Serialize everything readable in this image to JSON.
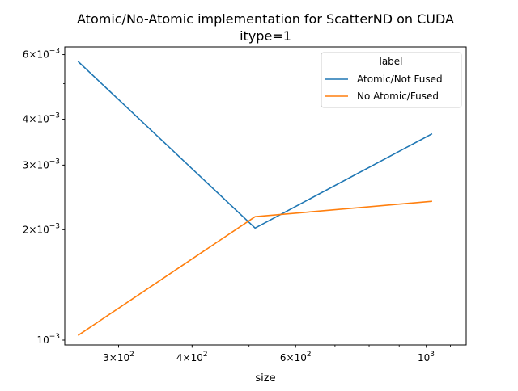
{
  "chart_data": {
    "type": "line",
    "title": "Atomic/No-Atomic implementation for ScatterND on CUDA",
    "subtitle": "itype=1",
    "xlabel": "size",
    "ylabel": "",
    "xscale": "log",
    "yscale": "log",
    "xlim": [
      243,
      1170
    ],
    "ylim": [
      0.00097,
      0.0063
    ],
    "x": [
      256,
      512,
      1024
    ],
    "x_ticks": [
      {
        "value": 300,
        "base": "3×10",
        "exp": "2"
      },
      {
        "value": 400,
        "base": "4×10",
        "exp": "2"
      },
      {
        "value": 600,
        "base": "6×10",
        "exp": "2"
      },
      {
        "value": 1000,
        "base": "10",
        "exp": "3"
      }
    ],
    "y_ticks": [
      {
        "value": 0.001,
        "base": "10",
        "exp": "−3"
      },
      {
        "value": 0.002,
        "base": "2×10",
        "exp": "−3"
      },
      {
        "value": 0.003,
        "base": "3×10",
        "exp": "−3"
      },
      {
        "value": 0.004,
        "base": "4×10",
        "exp": "−3"
      },
      {
        "value": 0.006,
        "base": "6×10",
        "exp": "−3"
      }
    ],
    "series": [
      {
        "name": "Atomic/Not Fused",
        "color": "#1f77b4",
        "values": [
          0.00575,
          0.00202,
          0.00365
        ]
      },
      {
        "name": "No Atomic/Fused",
        "color": "#ff7f0e",
        "values": [
          0.00103,
          0.00217,
          0.00239
        ]
      }
    ],
    "legend": {
      "title": "label",
      "position": "top-right"
    },
    "grid": false
  }
}
